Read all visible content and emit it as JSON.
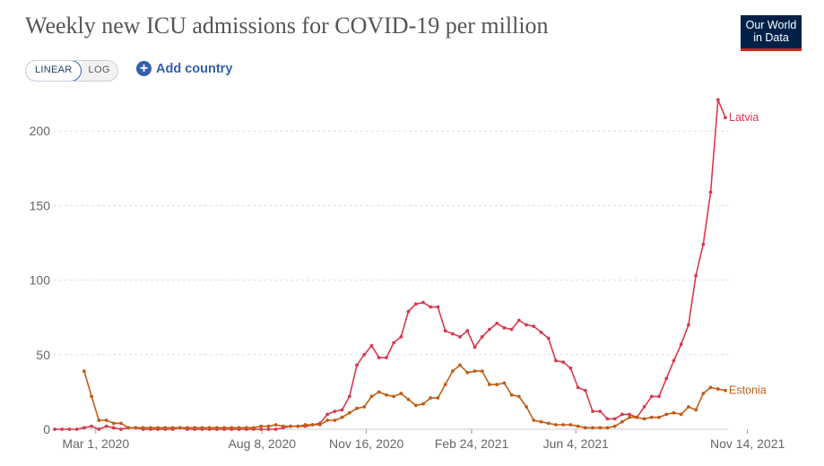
{
  "header": {
    "title": "Weekly new ICU admissions for COVID-19 per million",
    "logo_line1": "Our World",
    "logo_line2": "in Data"
  },
  "controls": {
    "linear_label": "LINEAR",
    "log_label": "LOG",
    "add_country_label": "Add country"
  },
  "colors": {
    "Latvia": "#d63a50",
    "Estonia": "#c25d16",
    "grid": "#dddddd",
    "accent": "#3360a9"
  },
  "chart_data": {
    "type": "line",
    "title": "Weekly new ICU admissions for COVID-19 per million",
    "xlabel": "",
    "ylabel": "",
    "ylim": [
      0,
      220
    ],
    "yticks": [
      0,
      50,
      100,
      150,
      200
    ],
    "x_start_date": "2020-01-22",
    "x_step_days": 7,
    "x_ticks": [
      {
        "label": "Mar 1, 2020",
        "index": 5.57
      },
      {
        "label": "Aug 8, 2020",
        "index": 28.14
      },
      {
        "label": "Nov 16, 2020",
        "index": 42.29
      },
      {
        "label": "Feb 24, 2021",
        "index": 56.57
      },
      {
        "label": "Jun 4, 2021",
        "index": 70.71
      },
      {
        "label": "Nov 14, 2021",
        "index": 94.0
      }
    ],
    "legend": "end-of-line labels",
    "grid": true,
    "series": [
      {
        "name": "Latvia",
        "start_index": 0,
        "values": [
          0,
          0,
          0,
          0,
          1,
          2,
          0,
          2,
          1,
          0,
          1,
          1,
          0,
          0,
          0,
          0,
          0,
          1,
          0,
          0,
          0,
          0,
          0,
          0,
          0,
          0,
          0,
          0,
          0,
          0,
          0,
          1,
          2,
          2,
          2,
          3,
          4,
          10,
          12,
          13,
          22,
          43,
          50,
          56,
          48,
          48,
          58,
          62,
          79,
          84,
          85,
          82,
          82,
          66,
          64,
          62,
          66,
          55,
          62,
          67,
          71,
          68,
          67,
          73,
          70,
          69,
          65,
          61,
          46,
          45,
          41,
          28,
          26,
          12,
          12,
          7,
          7,
          10,
          10,
          8,
          15,
          22,
          22,
          34,
          46,
          57,
          70,
          103,
          124,
          159,
          221,
          209
        ]
      },
      {
        "name": "Estonia",
        "start_index": 4,
        "values": [
          39,
          22,
          6,
          6,
          4,
          4,
          1,
          1,
          1,
          1,
          1,
          1,
          1,
          1,
          1,
          1,
          1,
          1,
          1,
          1,
          1,
          1,
          1,
          1,
          2,
          2,
          3,
          2,
          2,
          2,
          3,
          3,
          3,
          6,
          6,
          8,
          11,
          14,
          15,
          22,
          25,
          23,
          22,
          24,
          20,
          16,
          17,
          21,
          21,
          30,
          39,
          43,
          38,
          39,
          39,
          30,
          30,
          31,
          23,
          22,
          15,
          6,
          5,
          4,
          3,
          3,
          3,
          2,
          1,
          1,
          1,
          1,
          2,
          5,
          8,
          8,
          7,
          8,
          8,
          10,
          11,
          10,
          15,
          13,
          24,
          28,
          27,
          26
        ]
      }
    ]
  }
}
